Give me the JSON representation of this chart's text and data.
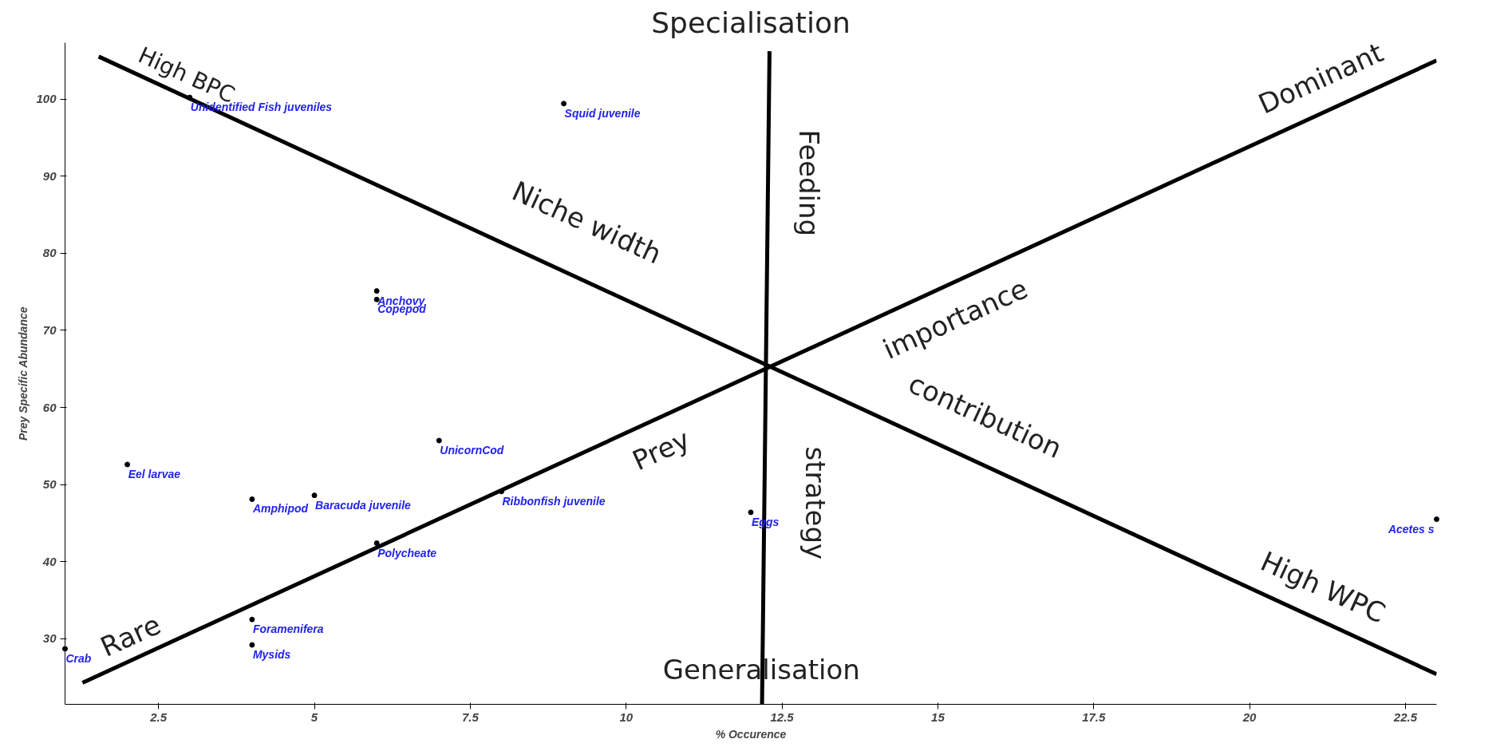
{
  "chart_data": {
    "type": "scatter",
    "title": "Specialisation",
    "xlabel": "% Occurence",
    "ylabel": "Prey Specific Abundance",
    "xlim": [
      1,
      23
    ],
    "ylim": [
      21.5,
      107.3
    ],
    "xticks": [
      2.5,
      5,
      7.5,
      10,
      12.5,
      15,
      17.5,
      20,
      22.5
    ],
    "yticks": [
      30,
      40,
      50,
      60,
      70,
      80,
      90,
      100
    ],
    "grid": false,
    "marker": "circle",
    "series": [
      {
        "color": "#000000",
        "x": [
          1,
          2,
          3,
          4,
          4,
          4,
          5,
          6,
          6,
          6,
          7,
          8,
          9,
          12,
          23
        ],
        "values": [
          28.7,
          52.6,
          100.2,
          48.1,
          32.5,
          29.2,
          48.6,
          75.1,
          74.0,
          42.4,
          55.7,
          49.1,
          99.4,
          46.4,
          45.5
        ]
      },
      {
        "type": "line",
        "marker": "none",
        "color": "#000000",
        "x": [
          1.54,
          23
        ],
        "values": [
          105.5,
          25.4
        ]
      },
      {
        "type": "line",
        "marker": "none",
        "color": "#000000",
        "x": [
          1.28,
          23
        ],
        "values": [
          24.3,
          105.0
        ]
      },
      {
        "type": "line",
        "marker": "none",
        "color": "#000000",
        "x": [
          12.3,
          12.18
        ],
        "values": [
          106.2,
          21.5
        ]
      }
    ],
    "annotations": [
      {
        "text": "Crab",
        "x": 1,
        "y": 28.7
      },
      {
        "text": "Eel larvae",
        "x": 2,
        "y": 52.6
      },
      {
        "text": "Unidentified Fish juveniles",
        "x": 3,
        "y": 100.2
      },
      {
        "text": "Amphipod",
        "x": 4,
        "y": 48.1
      },
      {
        "text": "Foramenifera",
        "x": 4,
        "y": 32.5
      },
      {
        "text": "Mysids",
        "x": 4,
        "y": 29.2
      },
      {
        "text": "Baracuda juvenile",
        "x": 5,
        "y": 48.6
      },
      {
        "text": "Anchovy",
        "x": 6,
        "y": 75.1
      },
      {
        "text": "Copepod",
        "x": 6,
        "y": 74.0
      },
      {
        "text": "Polycheate",
        "x": 6,
        "y": 42.4
      },
      {
        "text": "UnicornCod",
        "x": 7,
        "y": 55.7
      },
      {
        "text": "Ribbonfish juvenile",
        "x": 8,
        "y": 49.1
      },
      {
        "text": "Squid juvenile",
        "x": 9,
        "y": 99.4
      },
      {
        "text": "Eggs",
        "x": 12,
        "y": 46.4
      },
      {
        "text": "Acetes s",
        "x": 23,
        "y": 45.5
      },
      "High BPC",
      "Niche width",
      "Dominant",
      "importance",
      "contribution",
      "Prey",
      "Rare",
      "High WPC",
      "Feeding",
      "strategy",
      "Generalisation"
    ]
  }
}
